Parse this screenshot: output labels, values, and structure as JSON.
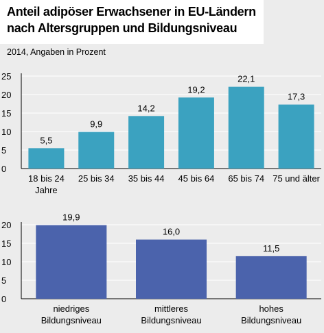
{
  "header": {
    "title_line1": "Anteil adipöser Erwachsener in EU-Ländern",
    "title_line2": "nach Altersgruppen und Bildungsniveau",
    "subtitle": "2014, Angaben in Prozent"
  },
  "colors": {
    "age_bars": "#3ba2c0",
    "education_bars": "#4b63ac",
    "background": "#ececec",
    "grid": "#ffffff"
  },
  "chart_data": [
    {
      "type": "bar",
      "title": "",
      "xlabel": "",
      "ylabel": "",
      "ylim": [
        0,
        25
      ],
      "yticks": [
        0,
        5,
        10,
        15,
        20,
        25
      ],
      "grid": true,
      "categories": [
        [
          "18 bis 24",
          "Jahre"
        ],
        [
          "25 bis 34"
        ],
        [
          "35 bis 44"
        ],
        [
          "45 bis 64"
        ],
        [
          "65 bis 74"
        ],
        [
          "75 und älter"
        ]
      ],
      "values": [
        5.5,
        9.9,
        14.2,
        19.2,
        22.1,
        17.3
      ],
      "value_labels": [
        "5,5",
        "9,9",
        "14,2",
        "19,2",
        "22,1",
        "17,3"
      ]
    },
    {
      "type": "bar",
      "title": "",
      "xlabel": "",
      "ylabel": "",
      "ylim": [
        0,
        20
      ],
      "yticks": [
        0,
        5,
        10,
        15,
        20
      ],
      "grid": true,
      "categories": [
        [
          "niedriges",
          "Bildungsniveau"
        ],
        [
          "mittleres",
          "Bildungsniveau"
        ],
        [
          "hohes",
          "Bildungsniveau"
        ]
      ],
      "values": [
        19.9,
        16.0,
        11.5
      ],
      "value_labels": [
        "19,9",
        "16,0",
        "11,5"
      ]
    }
  ]
}
